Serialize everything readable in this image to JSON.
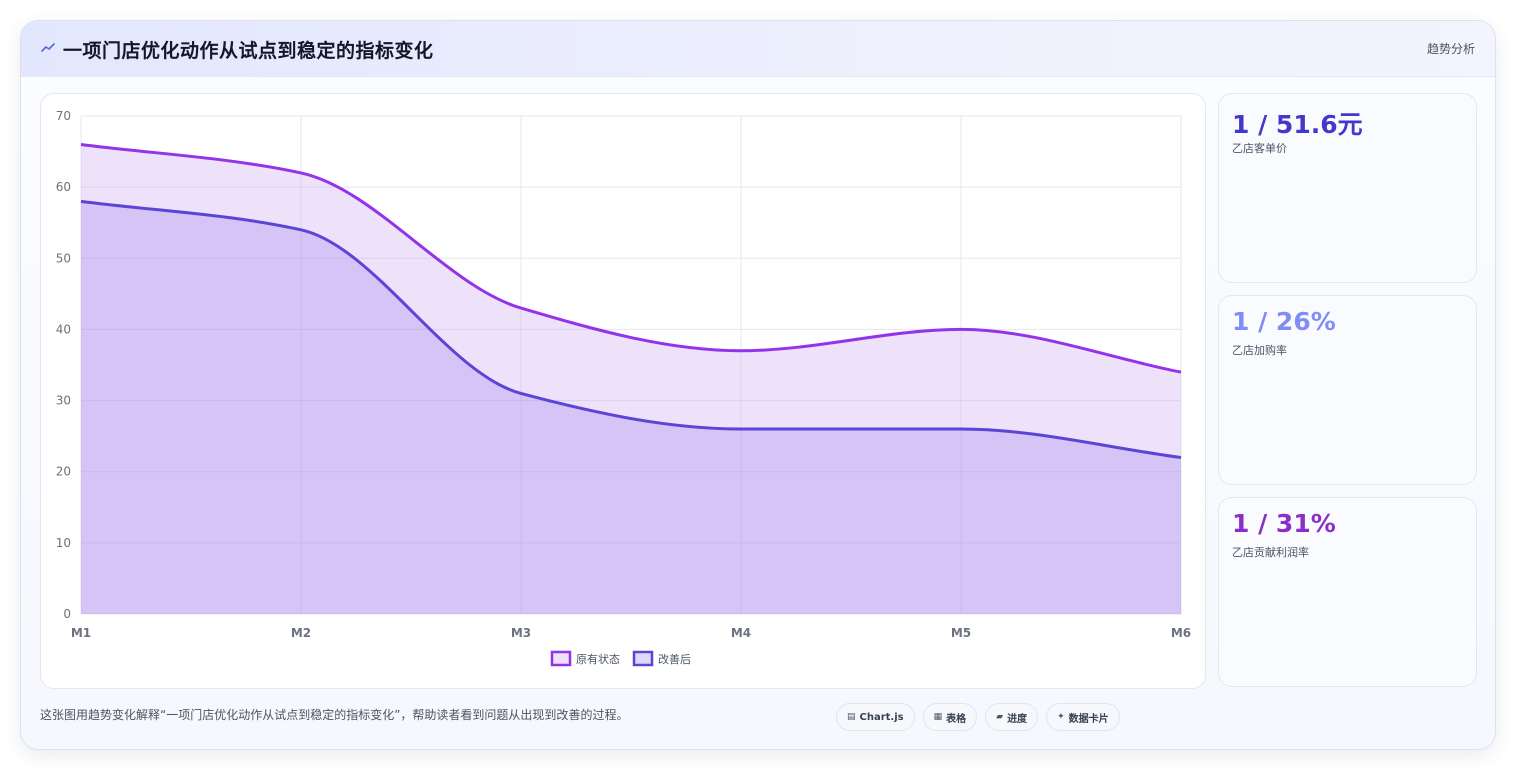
{
  "header": {
    "icon": "trend-line-icon",
    "title": "一项门店优化动作从试点到稳定的指标变化",
    "tag": "趋势分析"
  },
  "kpis": [
    {
      "value": "1 / 51.6元",
      "label": "乙店客单价",
      "color": "#4338ca"
    },
    {
      "value": "1 / 26%",
      "label": "乙店加购率",
      "color": "#818cf8"
    },
    {
      "value": "1 / 31%",
      "label": "乙店贡献利润率",
      "color": "#8b2fc9"
    }
  ],
  "footer": {
    "description": "这张图用趋势变化解释“一项门店优化动作从试点到稳定的指标变化”，帮助读者看到问题从出现到改善的过程。",
    "chips": [
      {
        "icon": "chart-icon",
        "glyph": "▤",
        "label": "Chart.js"
      },
      {
        "icon": "table-icon",
        "glyph": "▦",
        "label": "表格"
      },
      {
        "icon": "progress-icon",
        "glyph": "▰",
        "label": "进度"
      },
      {
        "icon": "sparkle-icon",
        "glyph": "✦",
        "label": "数据卡片"
      }
    ]
  },
  "chart_data": {
    "type": "area",
    "title": "",
    "xlabel": "",
    "ylabel": "",
    "categories": [
      "M1",
      "M2",
      "M3",
      "M4",
      "M5",
      "M6"
    ],
    "ylim": [
      0,
      70
    ],
    "yticks": [
      0,
      10,
      20,
      30,
      40,
      50,
      60,
      70
    ],
    "grid": true,
    "legend_position": "bottom",
    "series": [
      {
        "name": "原有状态",
        "values": [
          66,
          62,
          43,
          37,
          40,
          34
        ],
        "color": "#9333ea",
        "fill": "rgba(196,160,240,0.30)"
      },
      {
        "name": "改善后",
        "values": [
          58,
          54,
          31,
          26,
          26,
          22
        ],
        "color": "#5b45d6",
        "fill": "rgba(170,140,235,0.35)"
      }
    ]
  }
}
